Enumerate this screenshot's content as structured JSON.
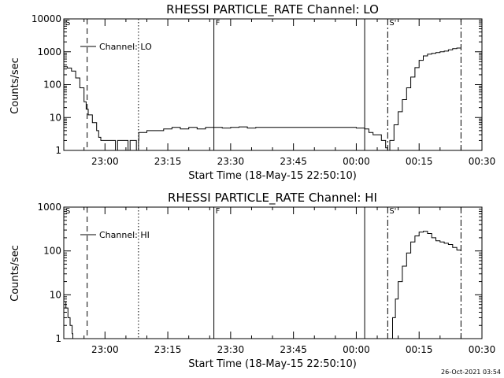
{
  "footer": {
    "timestamp": "26-Oct-2021 03:54"
  },
  "chart_data": [
    {
      "type": "line",
      "title": "RHESSI PARTICLE_RATE Channel: LO",
      "xlabel": "Start Time (18-May-15 22:50:10)",
      "ylabel": "Counts/sec",
      "y_scale": "log",
      "x_range": [
        "22:50:10",
        "00:30:00"
      ],
      "ylim": [
        1,
        10000
      ],
      "x_ticks": [
        "23:00",
        "23:15",
        "23:30",
        "23:45",
        "00:00",
        "00:15",
        "00:30"
      ],
      "y_ticks": [
        "1",
        "10",
        "100",
        "1000",
        "10000"
      ],
      "legend": {
        "position": "top-left",
        "entries": [
          "Channel: LO"
        ]
      },
      "markers": [
        {
          "time": "22:50:10",
          "style": "none",
          "label": "S"
        },
        {
          "time": "22:55:45",
          "style": "dashed",
          "label": ""
        },
        {
          "time": "23:08:00",
          "style": "dotted",
          "label": ""
        },
        {
          "time": "23:26:00",
          "style": "solid",
          "label": "F"
        },
        {
          "time": "00:02:00",
          "style": "solid",
          "label": ""
        },
        {
          "time": "00:07:30",
          "style": "dashdot",
          "label": "S'"
        },
        {
          "time": "00:25:00",
          "style": "dashdot",
          "label": ""
        }
      ],
      "series": [
        {
          "x": [
            "22:50:10",
            "22:51:00",
            "22:52:00",
            "22:53:00",
            "22:54:00",
            "22:55:00",
            "22:55:30",
            "22:56:00",
            "22:57:00",
            "22:58:00",
            "22:58:30",
            "22:59:00",
            "23:00:00",
            "23:01:00",
            "23:02:00",
            "23:02:30",
            "23:03:00",
            "23:04:00",
            "23:05:00",
            "23:05:30",
            "23:06:00",
            "23:07:00",
            "23:07:30",
            "23:08:00",
            "23:08:05",
            "23:10:00",
            "23:12:00",
            "23:14:00",
            "23:16:00",
            "23:18:00",
            "23:20:00",
            "23:22:00",
            "23:24:00",
            "23:26:00",
            "23:28:00",
            "23:30:00",
            "23:32:00",
            "23:34:00",
            "23:36:00",
            "23:38:00",
            "23:40:00",
            "23:42:00",
            "23:44:00",
            "23:46:00",
            "23:48:00",
            "23:50:00",
            "23:52:00",
            "23:54:00",
            "23:56:00",
            "23:58:00",
            "00:00:00",
            "00:02:00",
            "00:03:00",
            "00:04:00",
            "00:05:00",
            "00:06:00",
            "00:07:00",
            "00:07:30",
            "00:08:00",
            "00:09:00",
            "00:10:00",
            "00:11:00",
            "00:12:00",
            "00:13:00",
            "00:14:00",
            "00:15:00",
            "00:16:00",
            "00:17:00",
            "00:18:00",
            "00:19:00",
            "00:20:00",
            "00:21:00",
            "00:22:00",
            "00:23:00",
            "00:24:00",
            "00:25:00"
          ],
          "y": [
            350,
            320,
            260,
            160,
            80,
            30,
            18,
            12,
            7,
            4,
            2.5,
            2,
            2,
            2,
            2,
            1,
            2,
            2,
            2,
            1,
            2,
            2,
            1,
            2,
            3.5,
            4,
            4,
            4.5,
            5,
            4.5,
            5,
            4.5,
            5,
            5,
            4.8,
            5,
            5.2,
            4.8,
            5,
            5,
            5,
            5,
            5,
            5,
            5,
            5,
            5,
            5,
            5,
            5,
            4.8,
            4.5,
            3.5,
            3,
            3,
            2,
            1.2,
            1,
            2,
            6,
            15,
            35,
            80,
            170,
            330,
            550,
            750,
            850,
            900,
            950,
            1000,
            1050,
            1150,
            1250,
            1300,
            1300
          ]
        }
      ]
    },
    {
      "type": "line",
      "title": "RHESSI PARTICLE_RATE Channel: HI",
      "xlabel": "Start Time (18-May-15 22:50:10)",
      "ylabel": "Counts/sec",
      "y_scale": "log",
      "x_range": [
        "22:50:10",
        "00:30:00"
      ],
      "ylim": [
        1,
        1000
      ],
      "x_ticks": [
        "23:00",
        "23:15",
        "23:30",
        "23:45",
        "00:00",
        "00:15",
        "00:30"
      ],
      "y_ticks": [
        "1",
        "10",
        "100",
        "1000"
      ],
      "legend": {
        "position": "top-left",
        "entries": [
          "Channel: HI"
        ]
      },
      "markers": [
        {
          "time": "22:50:10",
          "style": "none",
          "label": "S"
        },
        {
          "time": "22:55:45",
          "style": "dashed",
          "label": ""
        },
        {
          "time": "23:08:00",
          "style": "dotted",
          "label": ""
        },
        {
          "time": "23:26:00",
          "style": "solid",
          "label": "F"
        },
        {
          "time": "00:02:00",
          "style": "solid",
          "label": ""
        },
        {
          "time": "00:07:30",
          "style": "dashdot",
          "label": "S'"
        },
        {
          "time": "00:25:00",
          "style": "dashdot",
          "label": ""
        }
      ],
      "series": [
        {
          "x": [
            "22:50:10",
            "22:50:40",
            "22:51:10",
            "22:51:40",
            "22:52:10",
            "22:52:20",
            "00:08:10",
            "00:08:40",
            "00:09:20",
            "00:10:00",
            "00:11:00",
            "00:12:00",
            "00:13:00",
            "00:14:00",
            "00:15:00",
            "00:16:00",
            "00:17:00",
            "00:18:00",
            "00:19:00",
            "00:20:00",
            "00:21:00",
            "00:22:00",
            "00:23:00",
            "00:24:00",
            "00:25:00"
          ],
          "y": [
            7,
            5,
            3,
            2,
            1.3,
            1,
            1,
            3,
            8,
            20,
            45,
            90,
            160,
            220,
            270,
            280,
            250,
            200,
            170,
            160,
            150,
            140,
            120,
            105,
            100
          ]
        }
      ]
    }
  ]
}
